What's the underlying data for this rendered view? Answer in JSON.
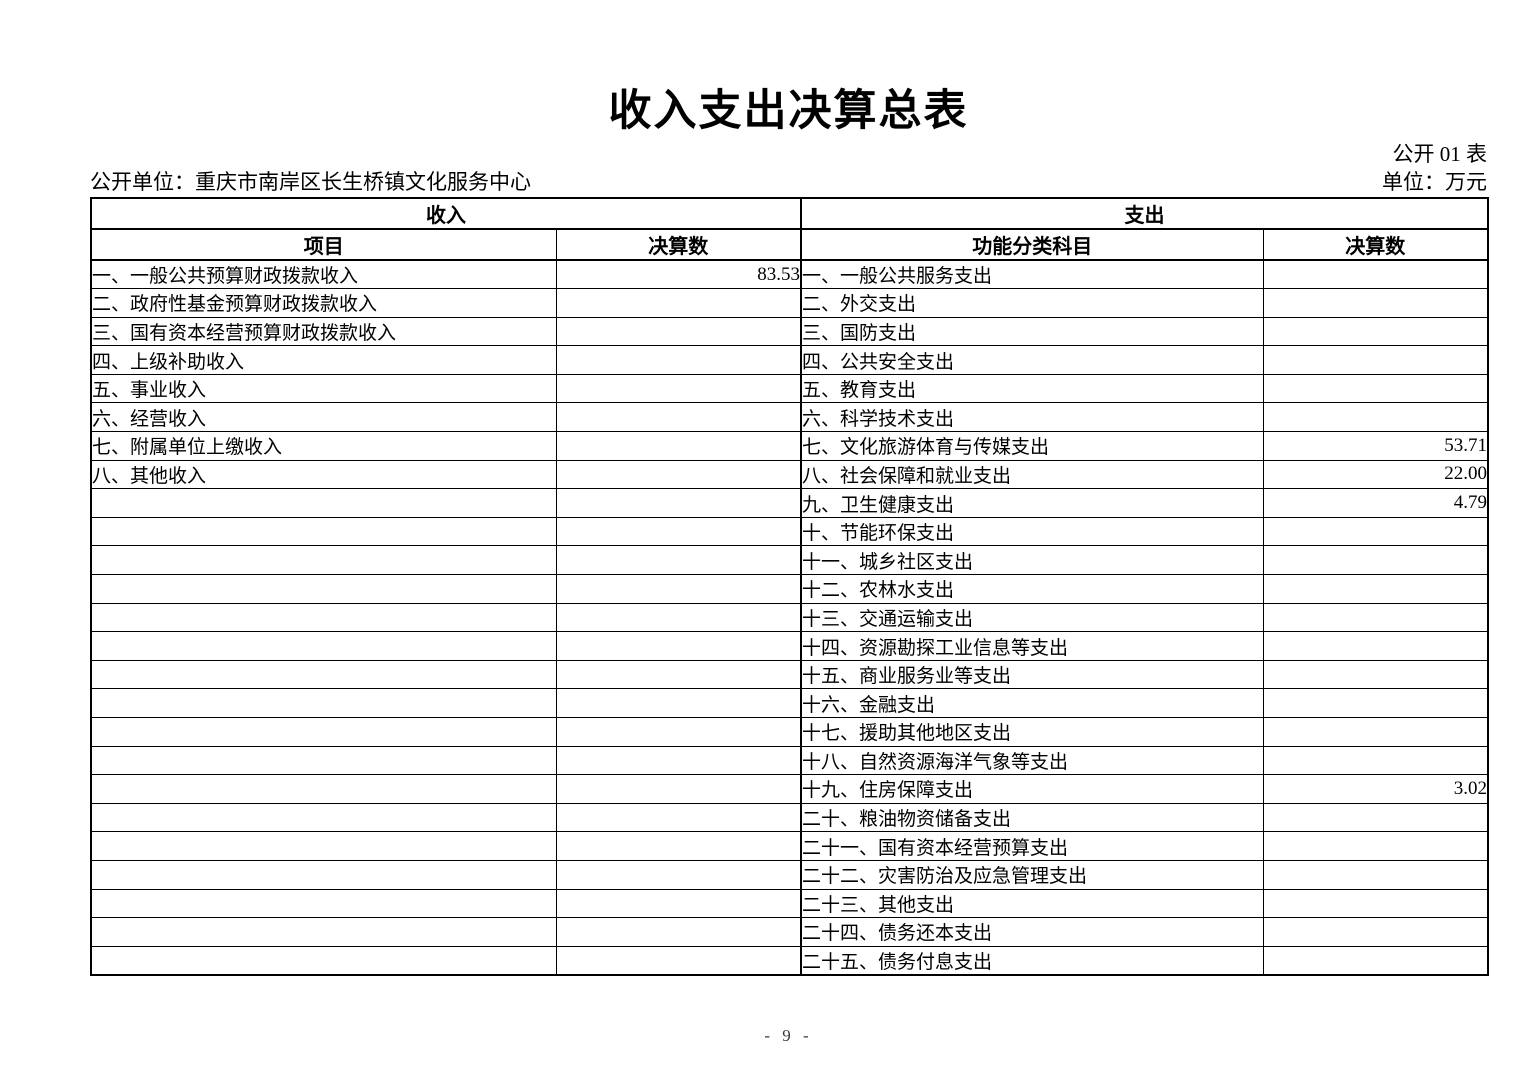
{
  "page": {
    "title": "收入支出决算总表",
    "table_ref": "公开 01 表",
    "publishing_unit": "公开单位：重庆市南岸区长生桥镇文化服务中心",
    "unit_of_measure": "单位：万元",
    "page_number": "- 9 -"
  },
  "colors": {
    "text": "#000000",
    "border": "#000000",
    "background": "#ffffff"
  },
  "table": {
    "income_header": "收入",
    "expense_header": "支出",
    "income_columns": [
      "项目",
      "决算数"
    ],
    "expense_columns": [
      "功能分类科目",
      "决算数"
    ],
    "rows": [
      {
        "income_item": "一、一般公共预算财政拨款收入",
        "income_amount": "83.53",
        "expense_item": "一、一般公共服务支出",
        "expense_amount": ""
      },
      {
        "income_item": "二、政府性基金预算财政拨款收入",
        "income_amount": "",
        "expense_item": "二、外交支出",
        "expense_amount": ""
      },
      {
        "income_item": "三、国有资本经营预算财政拨款收入",
        "income_amount": "",
        "expense_item": "三、国防支出",
        "expense_amount": ""
      },
      {
        "income_item": "四、上级补助收入",
        "income_amount": "",
        "expense_item": "四、公共安全支出",
        "expense_amount": ""
      },
      {
        "income_item": "五、事业收入",
        "income_amount": "",
        "expense_item": "五、教育支出",
        "expense_amount": ""
      },
      {
        "income_item": "六、经营收入",
        "income_amount": "",
        "expense_item": "六、科学技术支出",
        "expense_amount": ""
      },
      {
        "income_item": "七、附属单位上缴收入",
        "income_amount": "",
        "expense_item": "七、文化旅游体育与传媒支出",
        "expense_amount": "53.71"
      },
      {
        "income_item": "八、其他收入",
        "income_amount": "",
        "expense_item": "八、社会保障和就业支出",
        "expense_amount": "22.00"
      },
      {
        "income_item": "",
        "income_amount": "",
        "expense_item": "九、卫生健康支出",
        "expense_amount": "4.79"
      },
      {
        "income_item": "",
        "income_amount": "",
        "expense_item": "十、节能环保支出",
        "expense_amount": ""
      },
      {
        "income_item": "",
        "income_amount": "",
        "expense_item": "十一、城乡社区支出",
        "expense_amount": ""
      },
      {
        "income_item": "",
        "income_amount": "",
        "expense_item": "十二、农林水支出",
        "expense_amount": ""
      },
      {
        "income_item": "",
        "income_amount": "",
        "expense_item": "十三、交通运输支出",
        "expense_amount": ""
      },
      {
        "income_item": "",
        "income_amount": "",
        "expense_item": "十四、资源勘探工业信息等支出",
        "expense_amount": ""
      },
      {
        "income_item": "",
        "income_amount": "",
        "expense_item": "十五、商业服务业等支出",
        "expense_amount": ""
      },
      {
        "income_item": "",
        "income_amount": "",
        "expense_item": "十六、金融支出",
        "expense_amount": ""
      },
      {
        "income_item": "",
        "income_amount": "",
        "expense_item": "十七、援助其他地区支出",
        "expense_amount": ""
      },
      {
        "income_item": "",
        "income_amount": "",
        "expense_item": "十八、自然资源海洋气象等支出",
        "expense_amount": ""
      },
      {
        "income_item": "",
        "income_amount": "",
        "expense_item": "十九、住房保障支出",
        "expense_amount": "3.02"
      },
      {
        "income_item": "",
        "income_amount": "",
        "expense_item": "二十、粮油物资储备支出",
        "expense_amount": ""
      },
      {
        "income_item": "",
        "income_amount": "",
        "expense_item": "二十一、国有资本经营预算支出",
        "expense_amount": ""
      },
      {
        "income_item": "",
        "income_amount": "",
        "expense_item": "二十二、灾害防治及应急管理支出",
        "expense_amount": ""
      },
      {
        "income_item": "",
        "income_amount": "",
        "expense_item": "二十三、其他支出",
        "expense_amount": ""
      },
      {
        "income_item": "",
        "income_amount": "",
        "expense_item": "二十四、债务还本支出",
        "expense_amount": ""
      },
      {
        "income_item": "",
        "income_amount": "",
        "expense_item": "二十五、债务付息支出",
        "expense_amount": ""
      }
    ]
  }
}
